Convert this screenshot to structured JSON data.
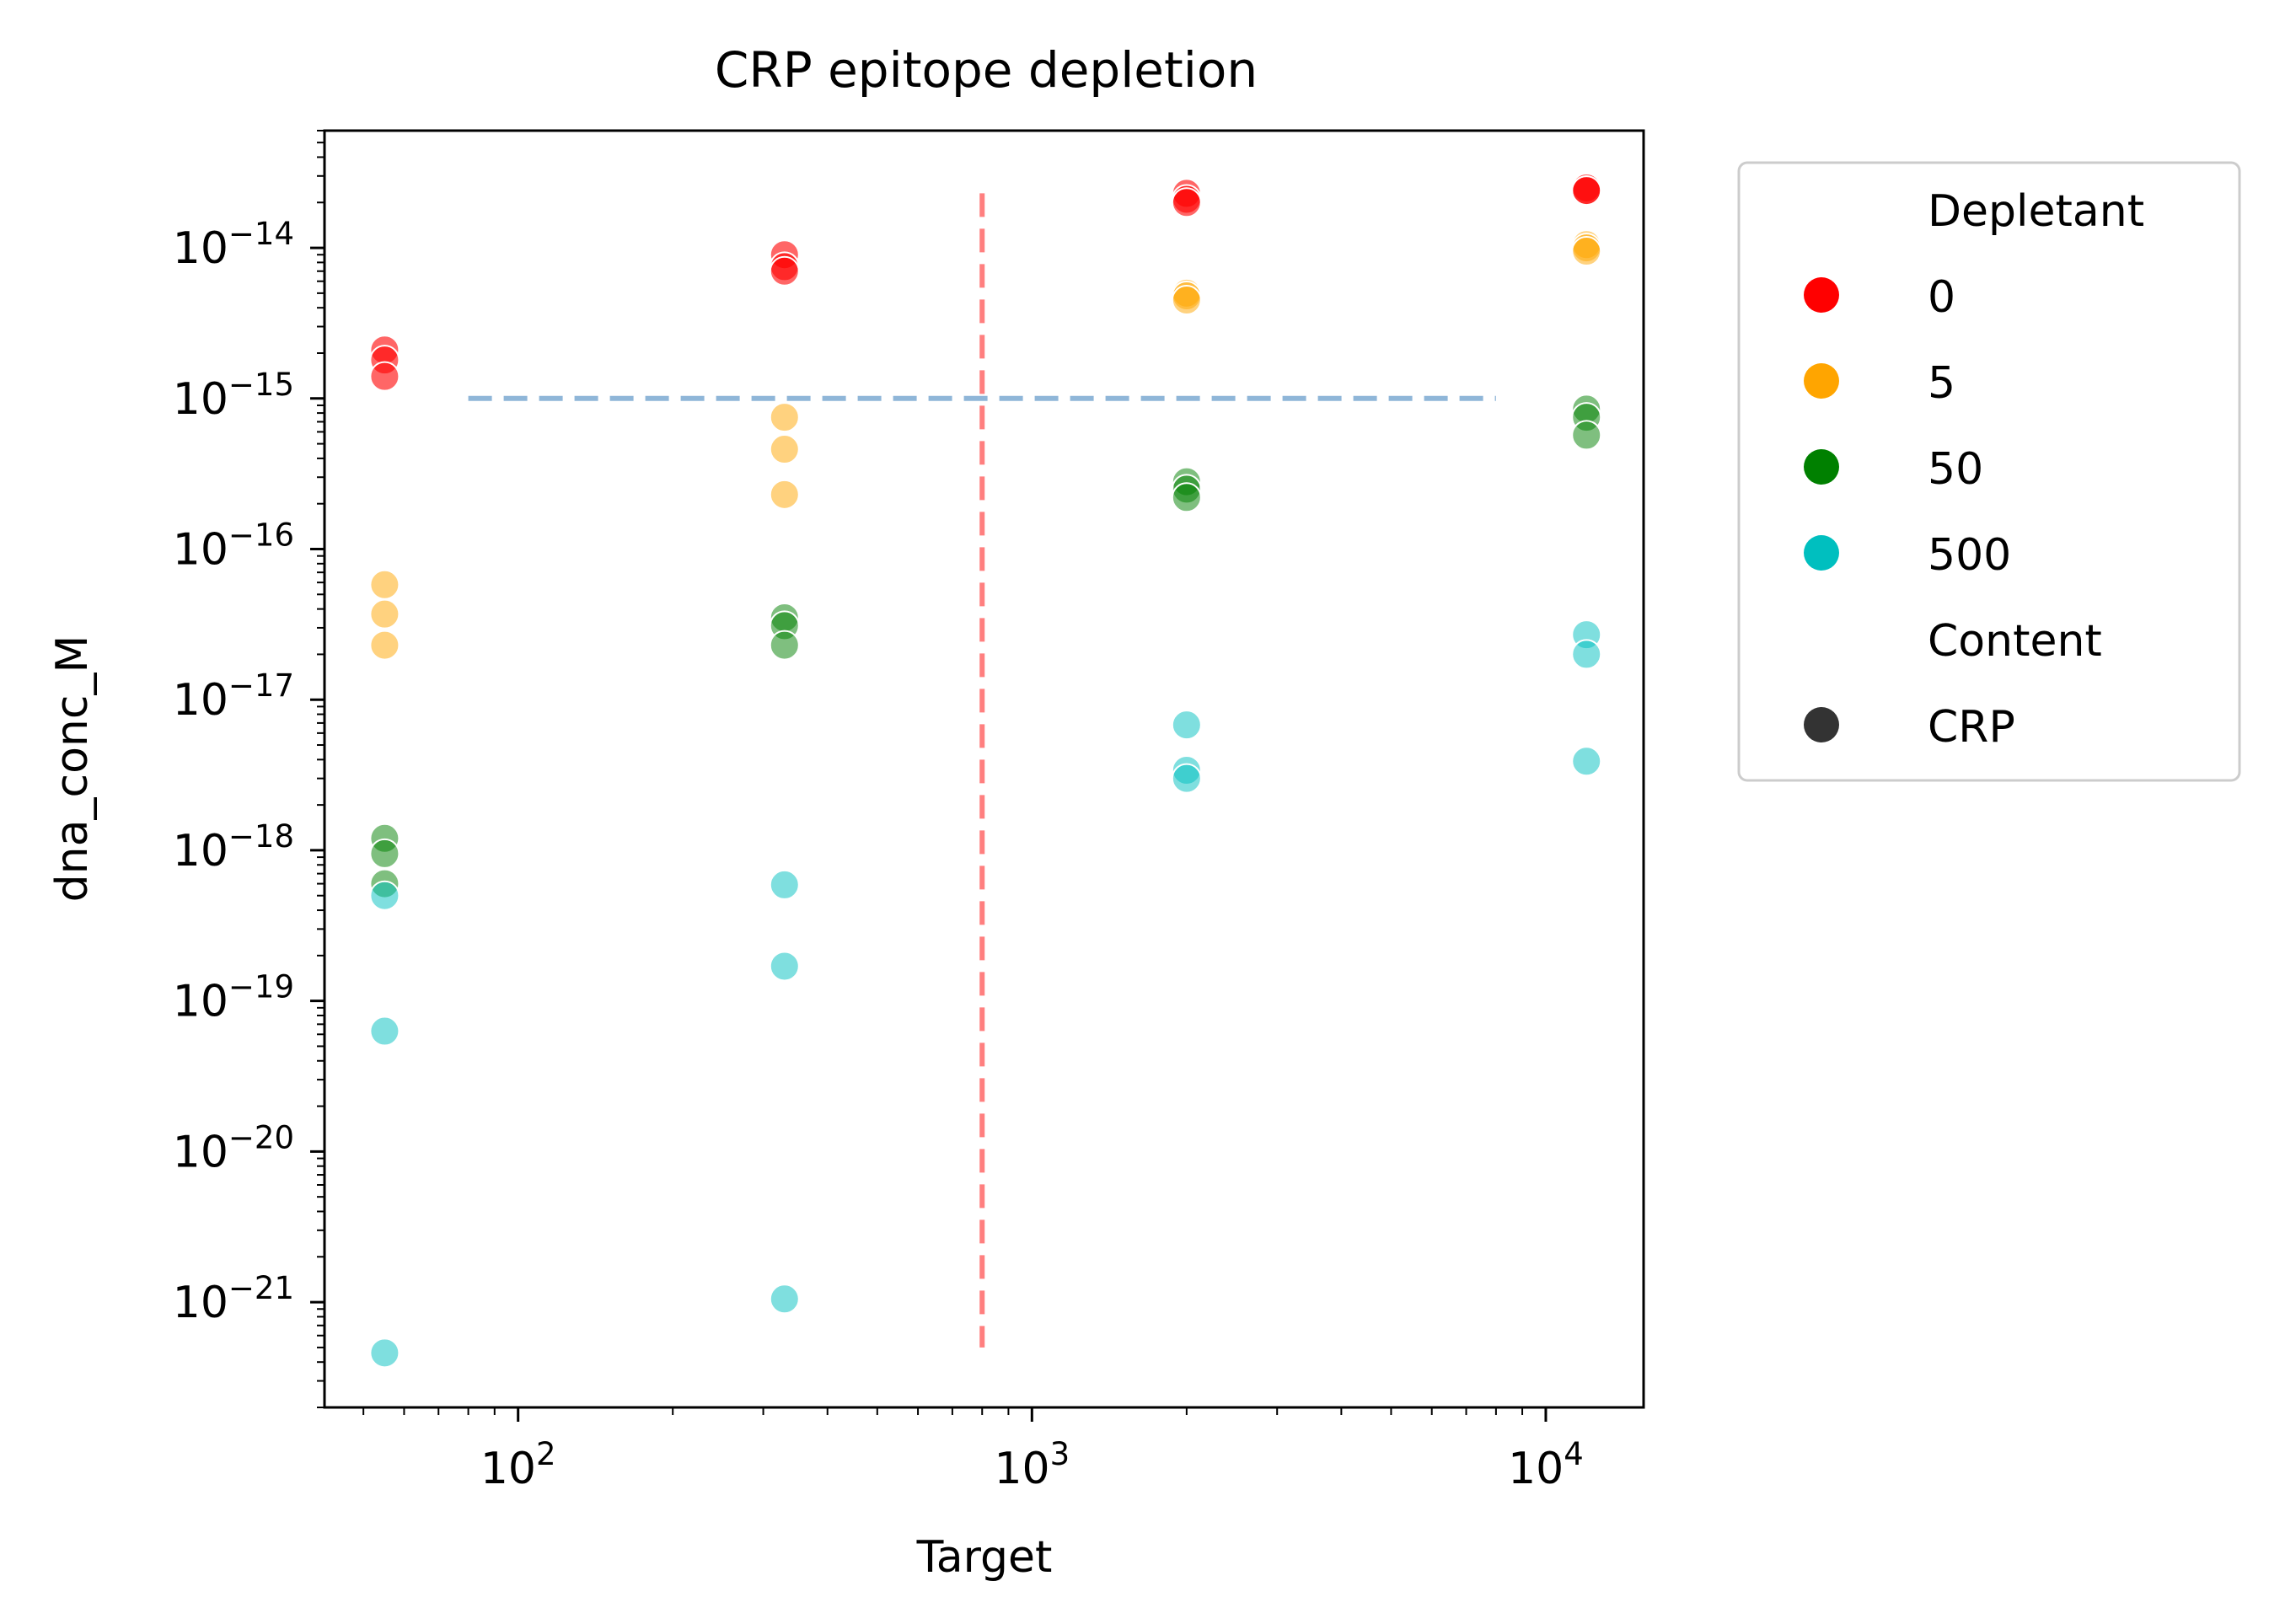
{
  "chart_data": {
    "type": "scatter",
    "title": "CRP epitope depletion",
    "xlabel": "Target",
    "ylabel": "dna_conc_M",
    "x_scale": "log",
    "y_scale": "log",
    "xlim": [
      42,
      15500
    ],
    "ylim": [
      2e-22,
      6e-14
    ],
    "x_ticks": [
      {
        "base": "10",
        "exp": "2",
        "value": 100
      },
      {
        "base": "10",
        "exp": "3",
        "value": 1000
      },
      {
        "base": "10",
        "exp": "4",
        "value": 10000
      }
    ],
    "y_ticks": [
      {
        "base": "10",
        "exp": "−14",
        "value": 1e-14
      },
      {
        "base": "10",
        "exp": "−15",
        "value": 1e-15
      },
      {
        "base": "10",
        "exp": "−16",
        "value": 1e-16
      },
      {
        "base": "10",
        "exp": "−17",
        "value": 1e-17
      },
      {
        "base": "10",
        "exp": "−18",
        "value": 1e-18
      },
      {
        "base": "10",
        "exp": "−19",
        "value": 1e-19
      },
      {
        "base": "10",
        "exp": "−20",
        "value": 1e-20
      },
      {
        "base": "10",
        "exp": "−21",
        "value": 1e-21
      }
    ],
    "grid": false,
    "legend_position": "outside right",
    "reference_lines": [
      {
        "orientation": "horizontal",
        "y": 1e-15,
        "x_range": [
          80,
          8000
        ],
        "color": "#8fb6d8",
        "style": "dashed"
      },
      {
        "orientation": "vertical",
        "x": 800,
        "y_range": [
          5e-22,
          2.3e-14
        ],
        "color": "#ff7f7f",
        "style": "dashed"
      }
    ],
    "series": [
      {
        "name": "0",
        "color": "#ff0000",
        "alpha": 0.6,
        "points": [
          [
            55,
            2.1e-15
          ],
          [
            55,
            1.8e-15
          ],
          [
            55,
            1.4e-15
          ],
          [
            330,
            9e-15
          ],
          [
            330,
            7.5e-15
          ],
          [
            330,
            7e-15
          ],
          [
            2000,
            2.3e-14
          ],
          [
            2000,
            2.1e-14
          ],
          [
            2000,
            2e-14
          ],
          [
            12000,
            2.5e-14
          ],
          [
            12000,
            2.4e-14
          ],
          [
            12000,
            2.4e-14
          ]
        ]
      },
      {
        "name": "5",
        "color": "#ffa500",
        "alpha": 0.5,
        "points": [
          [
            55,
            5.8e-17
          ],
          [
            55,
            3.7e-17
          ],
          [
            55,
            2.3e-17
          ],
          [
            330,
            7.5e-16
          ],
          [
            330,
            4.6e-16
          ],
          [
            330,
            2.3e-16
          ],
          [
            2000,
            5e-15
          ],
          [
            2000,
            4.8e-15
          ],
          [
            2000,
            4.5e-15
          ],
          [
            12000,
            1.05e-14
          ],
          [
            12000,
            1e-14
          ],
          [
            12000,
            9.5e-15
          ]
        ]
      },
      {
        "name": "50",
        "color": "#008000",
        "alpha": 0.5,
        "points": [
          [
            55,
            1.2e-18
          ],
          [
            55,
            9.5e-19
          ],
          [
            55,
            6e-19
          ],
          [
            330,
            3.5e-17
          ],
          [
            330,
            3.1e-17
          ],
          [
            330,
            2.3e-17
          ],
          [
            2000,
            2.8e-16
          ],
          [
            2000,
            2.5e-16
          ],
          [
            2000,
            2.2e-16
          ],
          [
            12000,
            8.5e-16
          ],
          [
            12000,
            7.5e-16
          ],
          [
            12000,
            5.7e-16
          ]
        ]
      },
      {
        "name": "500",
        "color": "#00bfbf",
        "alpha": 0.5,
        "points": [
          [
            55,
            5e-19
          ],
          [
            55,
            6.3e-20
          ],
          [
            55,
            4.6e-22
          ],
          [
            330,
            5.9e-19
          ],
          [
            330,
            1.7e-19
          ],
          [
            330,
            1.05e-21
          ],
          [
            2000,
            6.8e-18
          ],
          [
            2000,
            3.4e-18
          ],
          [
            2000,
            3e-18
          ],
          [
            12000,
            2.7e-17
          ],
          [
            12000,
            2e-17
          ],
          [
            12000,
            3.9e-18
          ]
        ]
      }
    ],
    "legend": {
      "hue_title": "Depletant",
      "hue_entries": [
        {
          "label": "0",
          "color": "#ff0000"
        },
        {
          "label": "5",
          "color": "#ffa500"
        },
        {
          "label": "50",
          "color": "#008000"
        },
        {
          "label": "500",
          "color": "#00bfbf"
        }
      ],
      "style_title": "Content",
      "style_entries": [
        {
          "label": "CRP",
          "color": "#333333"
        }
      ]
    }
  }
}
